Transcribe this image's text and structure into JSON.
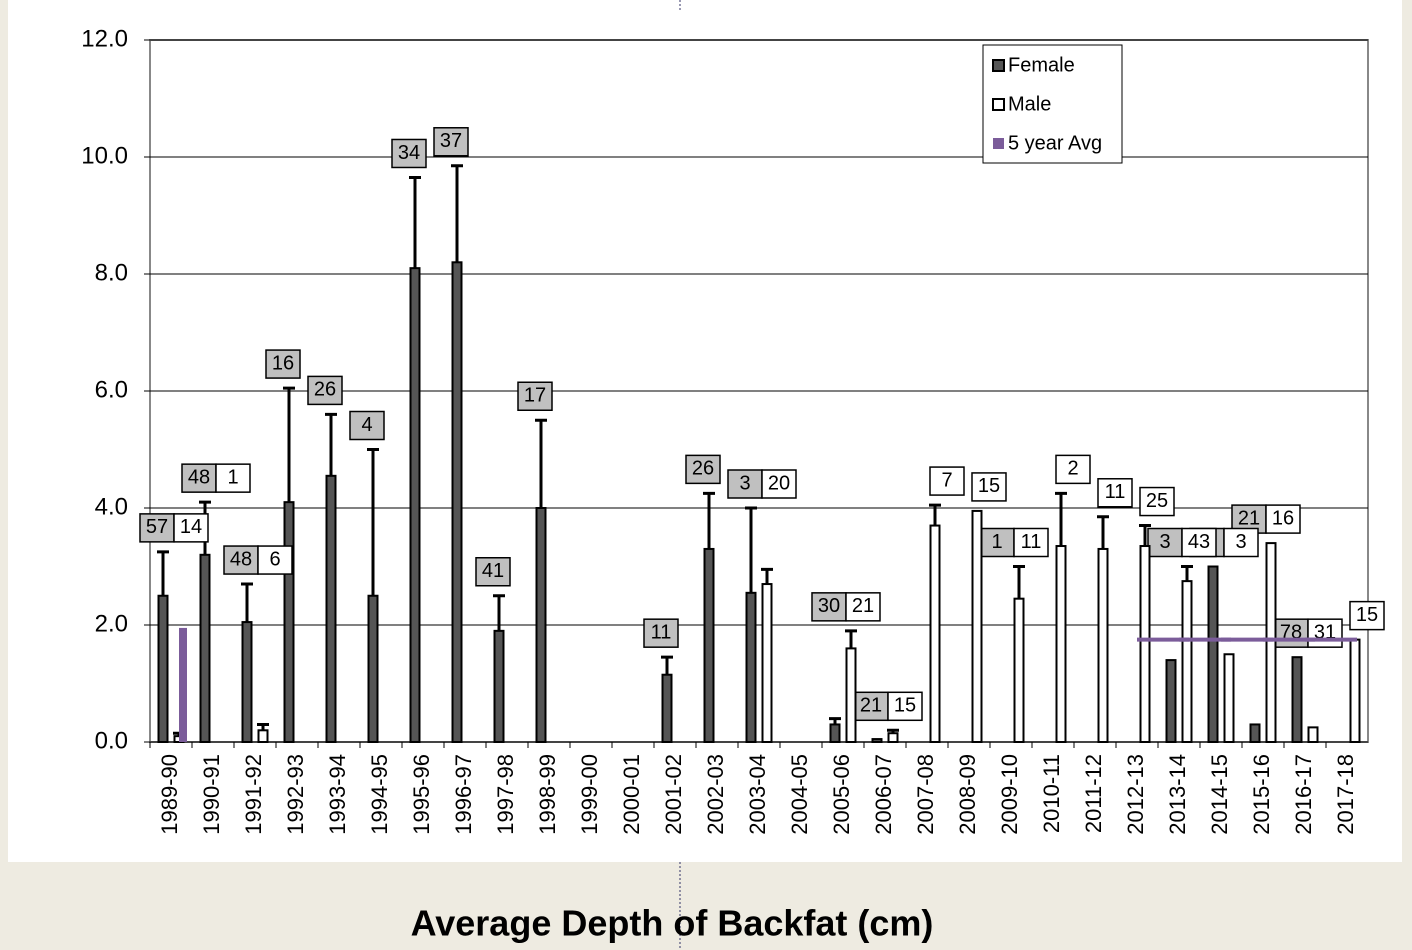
{
  "chart_data": {
    "type": "bar",
    "title": "Average Depth of Backfat (cm)",
    "categories": [
      "1989-90",
      "1990-91",
      "1991-92",
      "1992-93",
      "1993-94",
      "1994-95",
      "1995-96",
      "1996-97",
      "1997-98",
      "1998-99",
      "1999-00",
      "2000-01",
      "2001-02",
      "2002-03",
      "2003-04",
      "2004-05",
      "2005-06",
      "2006-07",
      "2007-08",
      "2008-09",
      "2009-10",
      "2010-11",
      "2011-12",
      "2012-13",
      "2013-14",
      "2014-15",
      "2015-16",
      "2016-17",
      "2017-18"
    ],
    "series": [
      {
        "name": "Female",
        "color": "#555555",
        "values": [
          2.5,
          3.2,
          2.05,
          4.1,
          4.55,
          2.5,
          8.1,
          8.2,
          1.9,
          4.0,
          null,
          null,
          1.15,
          3.3,
          2.55,
          null,
          0.3,
          0.05,
          null,
          null,
          null,
          null,
          null,
          null,
          1.4,
          3.0,
          0.3,
          1.45,
          null
        ],
        "errors": [
          0.75,
          0.9,
          0.65,
          1.95,
          1.05,
          2.5,
          1.55,
          1.65,
          0.6,
          1.5,
          null,
          null,
          0.3,
          0.95,
          1.45,
          null,
          0.1,
          null,
          null,
          null,
          null,
          null,
          null,
          null,
          null,
          null,
          null,
          null,
          null
        ],
        "n": [
          57,
          48,
          48,
          16,
          26,
          4,
          34,
          37,
          41,
          17,
          null,
          null,
          11,
          26,
          3,
          null,
          30,
          21,
          null,
          null,
          1,
          null,
          null,
          null,
          3,
          1,
          21,
          78,
          null
        ]
      },
      {
        "name": "Male",
        "color": "#ffffff",
        "values": [
          0.1,
          null,
          0.2,
          null,
          null,
          null,
          null,
          null,
          null,
          null,
          null,
          null,
          null,
          null,
          2.7,
          null,
          1.6,
          0.15,
          3.7,
          3.95,
          2.45,
          3.35,
          3.3,
          3.35,
          2.75,
          1.5,
          3.4,
          0.25,
          1.75
        ],
        "errors": [
          0.05,
          null,
          0.1,
          null,
          null,
          null,
          null,
          null,
          null,
          null,
          null,
          null,
          null,
          null,
          0.25,
          null,
          0.3,
          0.05,
          0.35,
          null,
          0.55,
          0.9,
          0.55,
          0.35,
          0.25,
          null,
          null,
          null,
          null
        ],
        "n": [
          14,
          1,
          6,
          null,
          null,
          null,
          null,
          null,
          null,
          null,
          null,
          null,
          null,
          null,
          20,
          null,
          21,
          15,
          7,
          15,
          11,
          2,
          11,
          25,
          43,
          3,
          16,
          31,
          15
        ]
      },
      {
        "name": "5 year Avg",
        "color": "#7b5c9a",
        "values": [
          1.95,
          null,
          null,
          null,
          null,
          null,
          null,
          null,
          null,
          null,
          null,
          null,
          null,
          null,
          null,
          null,
          null,
          null,
          null,
          null,
          null,
          null,
          null,
          1.75,
          1.75,
          1.75,
          1.75,
          1.75,
          1.75
        ]
      }
    ],
    "ylim": [
      0,
      12
    ],
    "yticks": [
      {
        "value": 0,
        "label": "0.0"
      },
      {
        "value": 2,
        "label": "2.0"
      },
      {
        "value": 4,
        "label": "4.0"
      },
      {
        "value": 6,
        "label": "6.0"
      },
      {
        "value": 8,
        "label": "8.0"
      },
      {
        "value": 10,
        "label": "10.0"
      },
      {
        "value": 12,
        "label": "12.0"
      }
    ],
    "grid": true
  }
}
